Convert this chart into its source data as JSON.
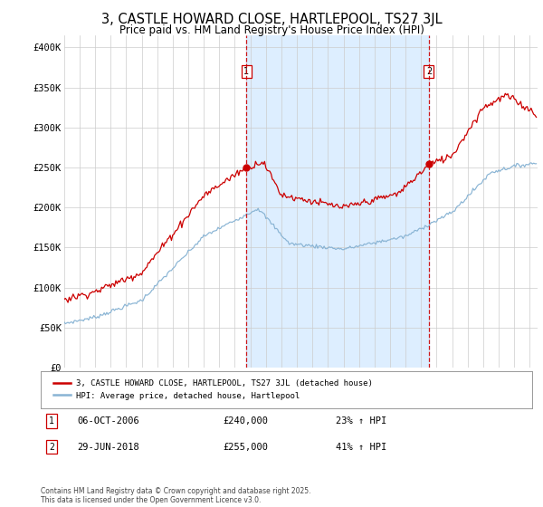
{
  "title": "3, CASTLE HOWARD CLOSE, HARTLEPOOL, TS27 3JL",
  "subtitle": "Price paid vs. HM Land Registry's House Price Index (HPI)",
  "title_fontsize": 10.5,
  "subtitle_fontsize": 8.5,
  "ylabel_ticks": [
    "£0",
    "£50K",
    "£100K",
    "£150K",
    "£200K",
    "£250K",
    "£300K",
    "£350K",
    "£400K"
  ],
  "ytick_values": [
    0,
    50000,
    100000,
    150000,
    200000,
    250000,
    300000,
    350000,
    400000
  ],
  "ylim": [
    0,
    415000
  ],
  "xlim_start": 1995.0,
  "xlim_end": 2025.5,
  "red_color": "#cc0000",
  "blue_color": "#89b4d4",
  "blue_fill_color": "#ddeeff",
  "vline_color": "#cc0000",
  "purchase1_x": 2006.75,
  "purchase2_x": 2018.5,
  "legend_line1": "3, CASTLE HOWARD CLOSE, HARTLEPOOL, TS27 3JL (detached house)",
  "legend_line2": "HPI: Average price, detached house, Hartlepool",
  "annotation1_date": "06-OCT-2006",
  "annotation1_price": "£240,000",
  "annotation1_hpi": "23% ↑ HPI",
  "annotation2_date": "29-JUN-2018",
  "annotation2_price": "£255,000",
  "annotation2_hpi": "41% ↑ HPI",
  "footer": "Contains HM Land Registry data © Crown copyright and database right 2025.\nThis data is licensed under the Open Government Licence v3.0.",
  "background_color": "#ffffff",
  "grid_color": "#cccccc"
}
